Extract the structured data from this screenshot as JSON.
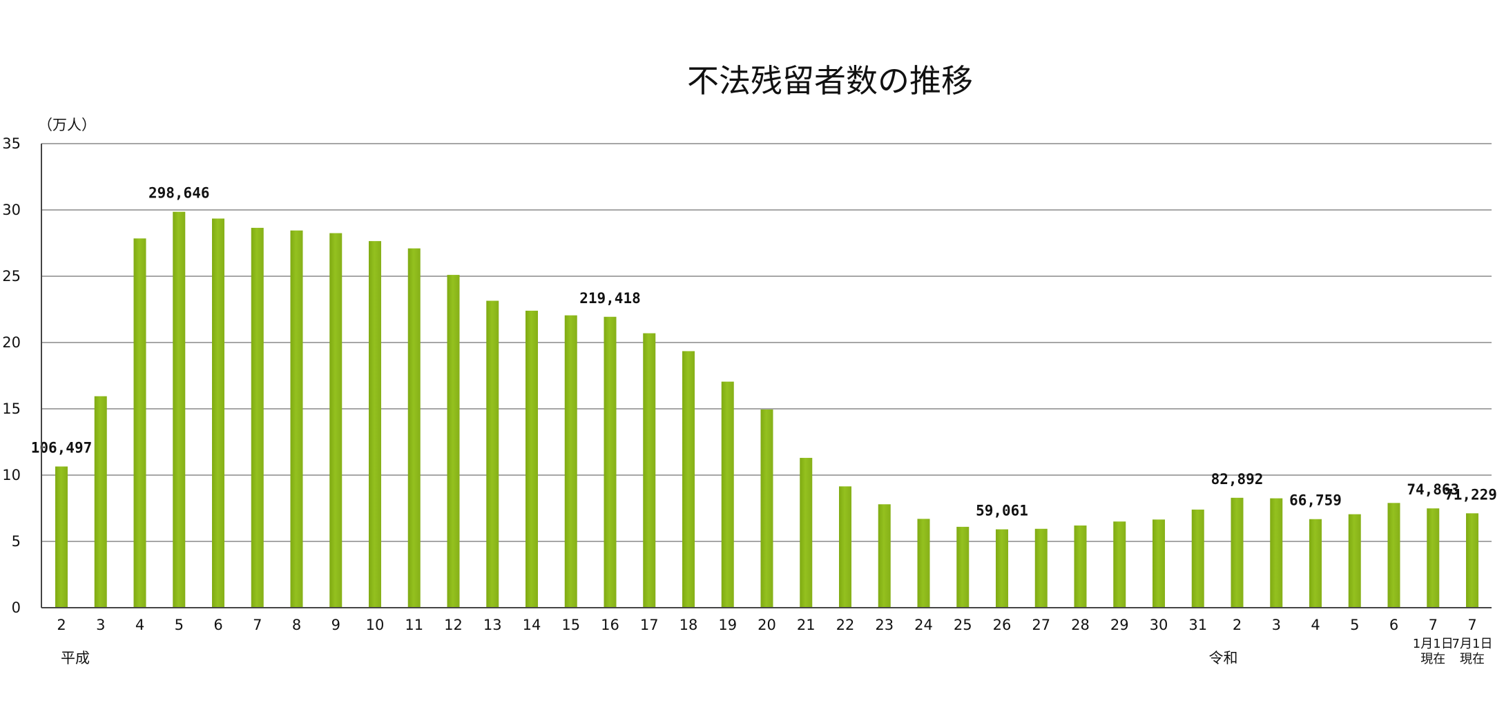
{
  "chart_data": {
    "type": "bar",
    "title": "不法残留者数の推移",
    "ylabel": "（万人）",
    "ylim": [
      0,
      35
    ],
    "yticks": [
      "0",
      "5",
      "10",
      "15",
      "20",
      "25",
      "30",
      "35"
    ],
    "grid": true,
    "bar_color": "#94c11f",
    "categories": [
      "2",
      "3",
      "4",
      "5",
      "6",
      "7",
      "8",
      "9",
      "10",
      "11",
      "12",
      "13",
      "14",
      "15",
      "16",
      "17",
      "18",
      "19",
      "20",
      "21",
      "22",
      "23",
      "24",
      "25",
      "26",
      "27",
      "28",
      "29",
      "30",
      "31",
      "2",
      "3",
      "4",
      "5",
      "6",
      "7",
      "7"
    ],
    "category_sublabels": [
      "",
      "",
      "",
      "",
      "",
      "",
      "",
      "",
      "",
      "",
      "",
      "",
      "",
      "",
      "",
      "",
      "",
      "",
      "",
      "",
      "",
      "",
      "",
      "",
      "",
      "",
      "",
      "",
      "",
      "",
      "",
      "",
      "",
      "",
      "",
      "1月1日\n現在",
      "7月1日\n現在"
    ],
    "era_labels": [
      {
        "text": "平成",
        "category_index": 0
      },
      {
        "text": "令和",
        "category_index": 30
      }
    ],
    "values": [
      10.65,
      15.95,
      27.85,
      29.86,
      29.35,
      28.65,
      28.45,
      28.25,
      27.65,
      27.1,
      25.1,
      23.15,
      22.4,
      22.05,
      21.94,
      20.7,
      19.35,
      17.05,
      14.95,
      11.3,
      9.15,
      7.8,
      6.7,
      6.1,
      5.91,
      5.95,
      6.2,
      6.5,
      6.65,
      7.4,
      8.29,
      8.25,
      6.68,
      7.05,
      7.9,
      7.49,
      7.12
    ],
    "data_labels": [
      {
        "index": 0,
        "text": "106,497"
      },
      {
        "index": 3,
        "text": "298,646"
      },
      {
        "index": 14,
        "text": "219,418"
      },
      {
        "index": 24,
        "text": "59,061"
      },
      {
        "index": 30,
        "text": "82,892"
      },
      {
        "index": 32,
        "text": "66,759"
      },
      {
        "index": 35,
        "text": "74,863"
      },
      {
        "index": 36,
        "text": "71,229"
      }
    ]
  }
}
